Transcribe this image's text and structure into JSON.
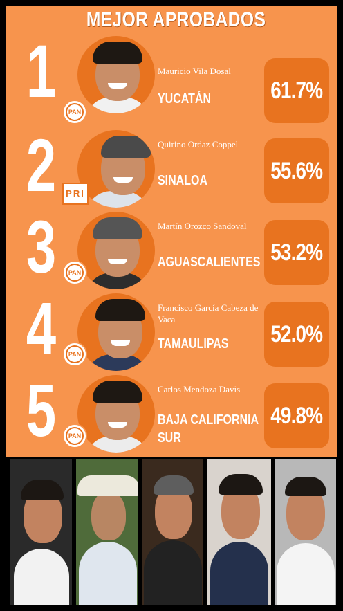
{
  "title": "MEJOR APROBADOS",
  "governors": [
    {
      "rank": "1",
      "name": "Mauricio Vila Dosal",
      "state": "YUCATÁN",
      "approval": "61.7%",
      "party": "PAN"
    },
    {
      "rank": "2",
      "name": "Quirino Ordaz Coppel",
      "state": "SINALOA",
      "approval": "55.6%",
      "party": "PRI"
    },
    {
      "rank": "3",
      "name": "Martín Orozco Sandoval",
      "state": "AGUASCALIENTES",
      "approval": "53.2%",
      "party": "PAN"
    },
    {
      "rank": "4",
      "name": "Francisco García Cabeza de Vaca",
      "state": "TAMAULIPAS",
      "approval": "52.0%",
      "party": "PAN"
    },
    {
      "rank": "5",
      "name": "Carlos Mendoza Davis",
      "state": "BAJA CALIFORNIA SUR",
      "approval": "49.8%",
      "party": "PAN"
    }
  ],
  "colors": {
    "background": "#f7944d",
    "accent": "#e8731f",
    "text": "#ffffff"
  }
}
